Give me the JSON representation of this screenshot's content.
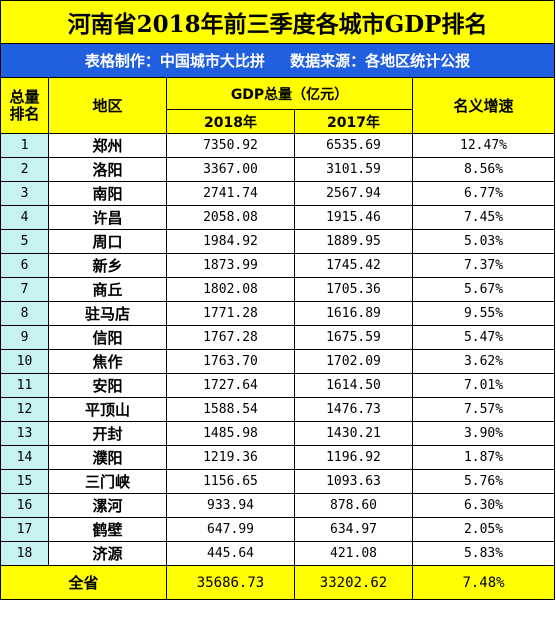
{
  "title": "河南省2018年前三季度各城市GDP排名",
  "subtitle": {
    "maker": "表格制作：中国城市大比拼",
    "source": "数据来源：各地区统计公报"
  },
  "headers": {
    "rank": "总量排名",
    "region": "地区",
    "gdp_total": "GDP总量（亿元）",
    "year_2018": "2018年",
    "year_2017": "2017年",
    "growth": "名义增速"
  },
  "rows": [
    {
      "rank": "1",
      "city": "郑州",
      "gdp2018": "7350.92",
      "gdp2017": "6535.69",
      "growth": "12.47%"
    },
    {
      "rank": "2",
      "city": "洛阳",
      "gdp2018": "3367.00",
      "gdp2017": "3101.59",
      "growth": "8.56%"
    },
    {
      "rank": "3",
      "city": "南阳",
      "gdp2018": "2741.74",
      "gdp2017": "2567.94",
      "growth": "6.77%"
    },
    {
      "rank": "4",
      "city": "许昌",
      "gdp2018": "2058.08",
      "gdp2017": "1915.46",
      "growth": "7.45%"
    },
    {
      "rank": "5",
      "city": "周口",
      "gdp2018": "1984.92",
      "gdp2017": "1889.95",
      "growth": "5.03%"
    },
    {
      "rank": "6",
      "city": "新乡",
      "gdp2018": "1873.99",
      "gdp2017": "1745.42",
      "growth": "7.37%"
    },
    {
      "rank": "7",
      "city": "商丘",
      "gdp2018": "1802.08",
      "gdp2017": "1705.36",
      "growth": "5.67%"
    },
    {
      "rank": "8",
      "city": "驻马店",
      "gdp2018": "1771.28",
      "gdp2017": "1616.89",
      "growth": "9.55%"
    },
    {
      "rank": "9",
      "city": "信阳",
      "gdp2018": "1767.28",
      "gdp2017": "1675.59",
      "growth": "5.47%"
    },
    {
      "rank": "10",
      "city": "焦作",
      "gdp2018": "1763.70",
      "gdp2017": "1702.09",
      "growth": "3.62%"
    },
    {
      "rank": "11",
      "city": "安阳",
      "gdp2018": "1727.64",
      "gdp2017": "1614.50",
      "growth": "7.01%"
    },
    {
      "rank": "12",
      "city": "平顶山",
      "gdp2018": "1588.54",
      "gdp2017": "1476.73",
      "growth": "7.57%"
    },
    {
      "rank": "13",
      "city": "开封",
      "gdp2018": "1485.98",
      "gdp2017": "1430.21",
      "growth": "3.90%"
    },
    {
      "rank": "14",
      "city": "濮阳",
      "gdp2018": "1219.36",
      "gdp2017": "1196.92",
      "growth": "1.87%"
    },
    {
      "rank": "15",
      "city": "三门峡",
      "gdp2018": "1156.65",
      "gdp2017": "1093.63",
      "growth": "5.76%"
    },
    {
      "rank": "16",
      "city": "漯河",
      "gdp2018": "933.94",
      "gdp2017": "878.60",
      "growth": "6.30%"
    },
    {
      "rank": "17",
      "city": "鹤壁",
      "gdp2018": "647.99",
      "gdp2017": "634.97",
      "growth": "2.05%"
    },
    {
      "rank": "18",
      "city": "济源",
      "gdp2018": "445.64",
      "gdp2017": "421.08",
      "growth": "5.83%"
    }
  ],
  "total": {
    "label": "全省",
    "gdp2018": "35686.73",
    "gdp2017": "33202.62",
    "growth": "7.48%"
  },
  "colors": {
    "title_bg": "#ffff00",
    "subtitle_bg": "#1f5fe0",
    "rank_bg": "#c6f2f2"
  }
}
